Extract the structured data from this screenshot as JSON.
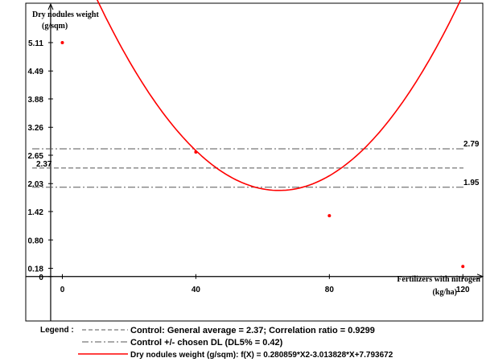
{
  "chart_data": {
    "type": "line",
    "ylabel_line1": "Dry nodules weight",
    "ylabel_line2": "(g/sqm)",
    "xlabel_line1": "Fertilizers with nitrogen",
    "xlabel_line2": "(kg/ha)",
    "x_ticks": [
      "0",
      "40",
      "80",
      "120"
    ],
    "x_tick_values": [
      0,
      40,
      80,
      120
    ],
    "y_ticks": [
      "0",
      "0.18",
      "0.80",
      "1.42",
      "2.03",
      "2.65",
      "3.26",
      "3.88",
      "4.49",
      "5.11"
    ],
    "y_tick_values": [
      0,
      0.18,
      0.8,
      1.42,
      2.03,
      2.65,
      3.26,
      3.88,
      4.49,
      5.11
    ],
    "xlim": [
      -10,
      125
    ],
    "ylim": [
      -0.9,
      5.9
    ],
    "grid": false,
    "points": [
      {
        "x": 0,
        "y": 5.11
      },
      {
        "x": 40,
        "y": 2.72
      },
      {
        "x": 80,
        "y": 1.33
      },
      {
        "x": 120,
        "y": 0.22
      }
    ],
    "fit": {
      "a": 0.280859,
      "b": -3.013828,
      "c": 7.793672,
      "x_unit_divisor": 10,
      "color": "#ff0000"
    },
    "reference_lines": [
      {
        "value": 2.79,
        "label": "2.79",
        "style": "dashdot",
        "label_side": "right"
      },
      {
        "value": 2.37,
        "label": "2.37",
        "style": "dashed",
        "label_side": "left"
      },
      {
        "value": 1.95,
        "label": "1.95",
        "style": "dashdot",
        "label_side": "right"
      }
    ],
    "legend": {
      "title": "Legend :",
      "entries": [
        {
          "text": "Control: General average = 2.37; Correlation ratio = 0.9299",
          "style": "dashed",
          "color": "#555555"
        },
        {
          "text": "Control +/- chosen DL (DL5% = 0.42)",
          "style": "dashdot",
          "color": "#555555"
        },
        {
          "text": "Dry nodules weight (g/sqm): f(X) =  0.280859*X2-3.013828*X+7.793672",
          "style": "solid",
          "color": "#ff0000"
        }
      ]
    }
  }
}
